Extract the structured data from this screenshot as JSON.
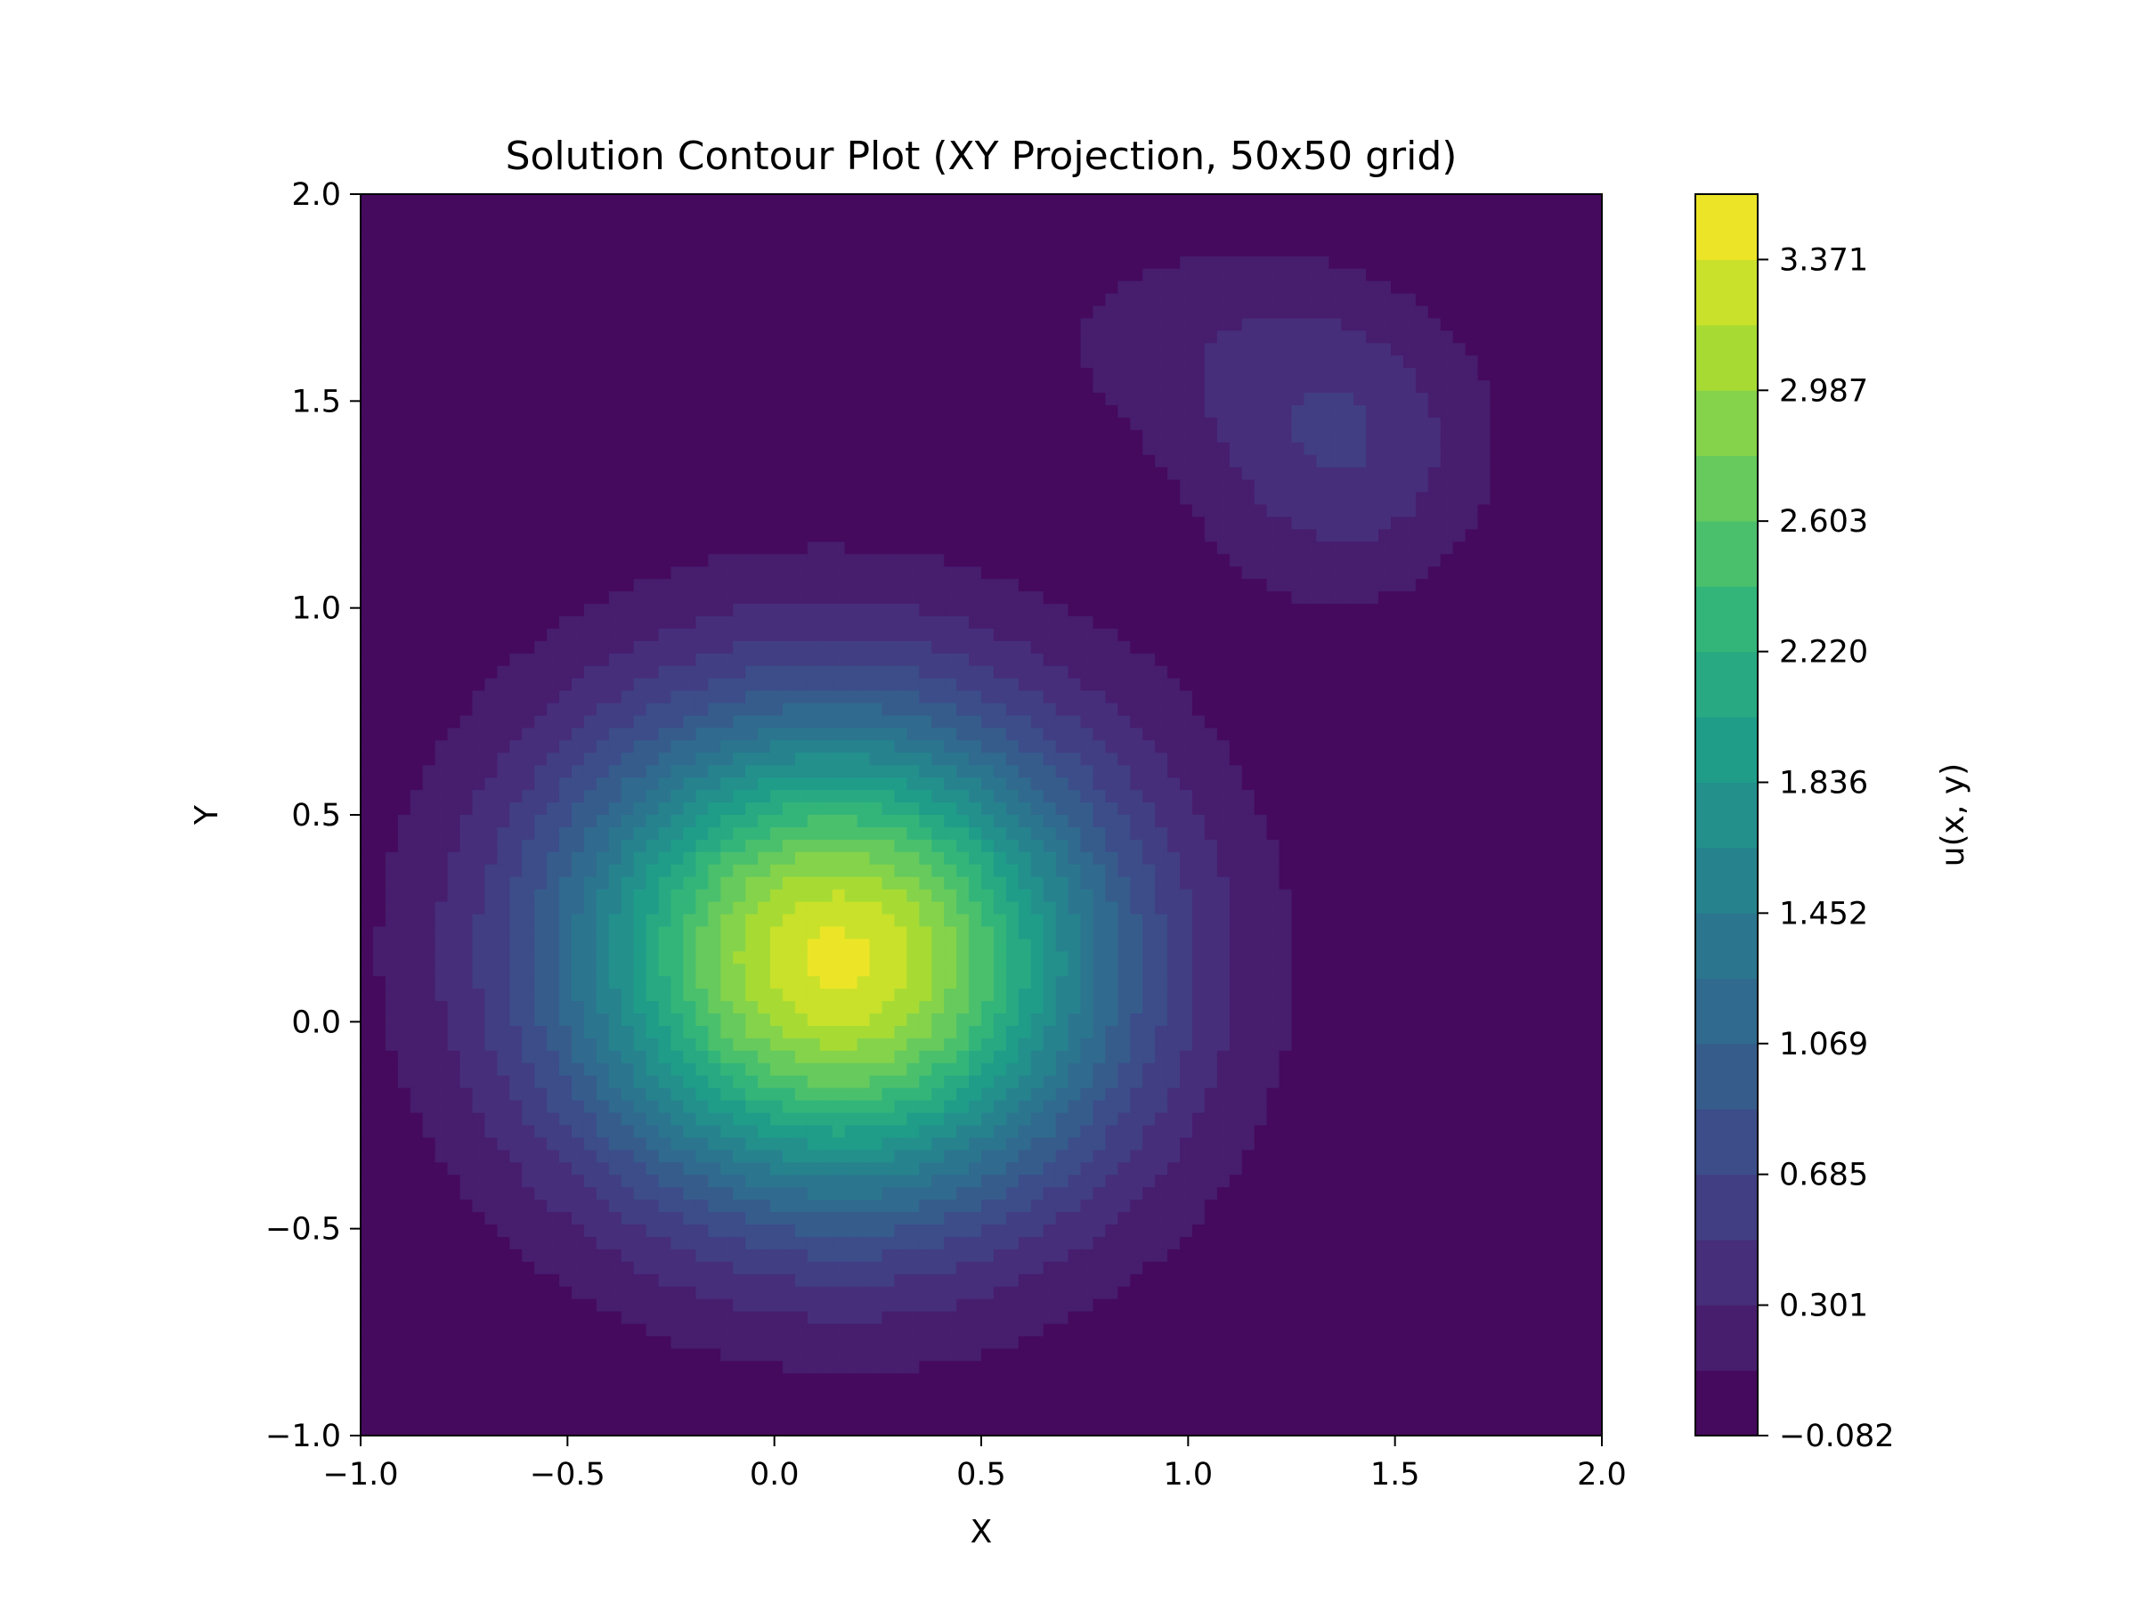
{
  "chart_data": {
    "type": "contour",
    "title": "Solution Contour Plot (XY Projection, 50x50 grid)",
    "xlabel": "X",
    "ylabel": "Y",
    "xlim": [
      -1.0,
      2.0
    ],
    "ylim": [
      -1.0,
      2.0
    ],
    "x_ticks": [
      "−1.0",
      "−0.5",
      "0.0",
      "0.5",
      "1.0",
      "1.5",
      "2.0"
    ],
    "y_ticks": [
      "−1.0",
      "−0.5",
      "0.0",
      "0.5",
      "1.0",
      "1.5",
      "2.0"
    ],
    "grid": false,
    "colormap": "viridis",
    "colorbar": {
      "label": "u(x, y)",
      "min": -0.082,
      "max": 3.563,
      "tick_values": [
        -0.082,
        0.301,
        0.685,
        1.069,
        1.452,
        1.836,
        2.22,
        2.603,
        2.987,
        3.371
      ],
      "tick_labels": [
        "−0.082",
        "0.301",
        "0.685",
        "1.069",
        "1.452",
        "1.836",
        "2.220",
        "2.603",
        "2.987",
        "3.371"
      ],
      "levels": 19
    },
    "features": [
      {
        "kind": "peak",
        "x": 0.15,
        "y": 0.15,
        "value": 3.5
      },
      {
        "kind": "local_peak",
        "x": 1.38,
        "y": 1.38,
        "value": 0.55
      }
    ],
    "colors": {
      "background": "#ffffff",
      "cmap_low": "#440154",
      "cmap_high": "#fde725"
    }
  }
}
